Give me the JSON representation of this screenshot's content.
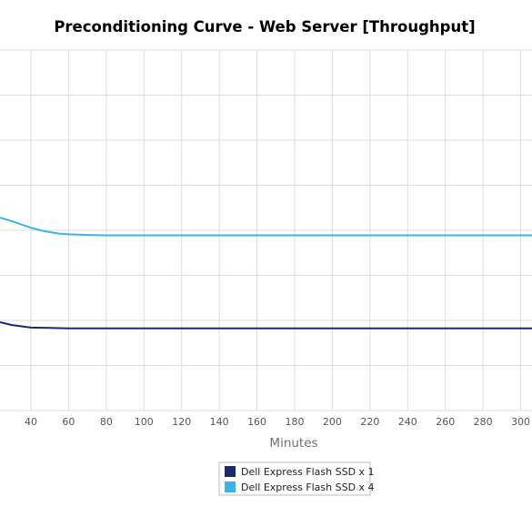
{
  "chart_data": {
    "type": "line",
    "title": "Preconditioning Curve - Web Server [Throughput]",
    "xlabel": "Minutes",
    "ylabel": "",
    "x_ticks": [
      40,
      60,
      80,
      100,
      120,
      140,
      160,
      180,
      200,
      220,
      240,
      260,
      280,
      300
    ],
    "xlim": [
      23,
      307
    ],
    "grid": true,
    "legend_position": "bottom-center",
    "series": [
      {
        "name": "Dell Express Flash SSD x 1",
        "color": "#1a2a6c",
        "x": [
          23,
          30,
          40,
          50,
          60,
          80,
          100,
          120,
          140,
          160,
          180,
          200,
          220,
          240,
          260,
          280,
          300,
          307
        ],
        "y": [
          0.245,
          0.237,
          0.23,
          0.229,
          0.228,
          0.228,
          0.228,
          0.228,
          0.228,
          0.228,
          0.228,
          0.228,
          0.228,
          0.228,
          0.228,
          0.228,
          0.228,
          0.228
        ]
      },
      {
        "name": "Dell Express Flash SSD x 4",
        "color": "#3cb4e8",
        "x": [
          23,
          25,
          30,
          35,
          40,
          45,
          50,
          55,
          60,
          70,
          80,
          100,
          120,
          140,
          160,
          180,
          200,
          220,
          240,
          260,
          280,
          300,
          307
        ],
        "y": [
          0.535,
          0.533,
          0.525,
          0.516,
          0.507,
          0.5,
          0.495,
          0.491,
          0.489,
          0.487,
          0.486,
          0.486,
          0.486,
          0.486,
          0.486,
          0.486,
          0.486,
          0.486,
          0.486,
          0.486,
          0.486,
          0.486,
          0.486
        ]
      }
    ]
  }
}
